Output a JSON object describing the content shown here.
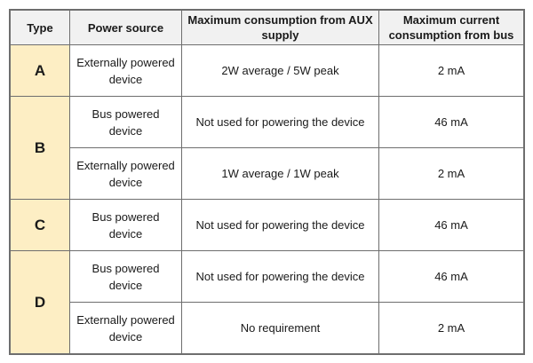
{
  "table": {
    "headers": {
      "type": "Type",
      "power_source": "Power source",
      "max_aux": "Maximum consumption from AUX supply",
      "max_bus": "Maximum current consumption from bus"
    },
    "groups": [
      {
        "type": "A",
        "rows": [
          {
            "power_source": "Externally powered device",
            "max_aux": "2W average / 5W peak",
            "max_bus": "2 mA"
          }
        ]
      },
      {
        "type": "B",
        "rows": [
          {
            "power_source": "Bus powered device",
            "max_aux": "Not used for powering the device",
            "max_bus": "46 mA"
          },
          {
            "power_source": "Externally powered device",
            "max_aux": "1W average / 1W peak",
            "max_bus": "2 mA"
          }
        ]
      },
      {
        "type": "C",
        "rows": [
          {
            "power_source": "Bus powered device",
            "max_aux": "Not used for powering the device",
            "max_bus": "46 mA"
          }
        ]
      },
      {
        "type": "D",
        "rows": [
          {
            "power_source": "Bus powered device",
            "max_aux": "Not used for powering the device",
            "max_bus": "46 mA"
          },
          {
            "power_source": "Externally powered device",
            "max_aux": "No requirement",
            "max_bus": "2 mA"
          }
        ]
      }
    ],
    "colors": {
      "type_column": "#fdeec4",
      "header": "#f1f1f1",
      "border": "#6e6e6e"
    }
  }
}
